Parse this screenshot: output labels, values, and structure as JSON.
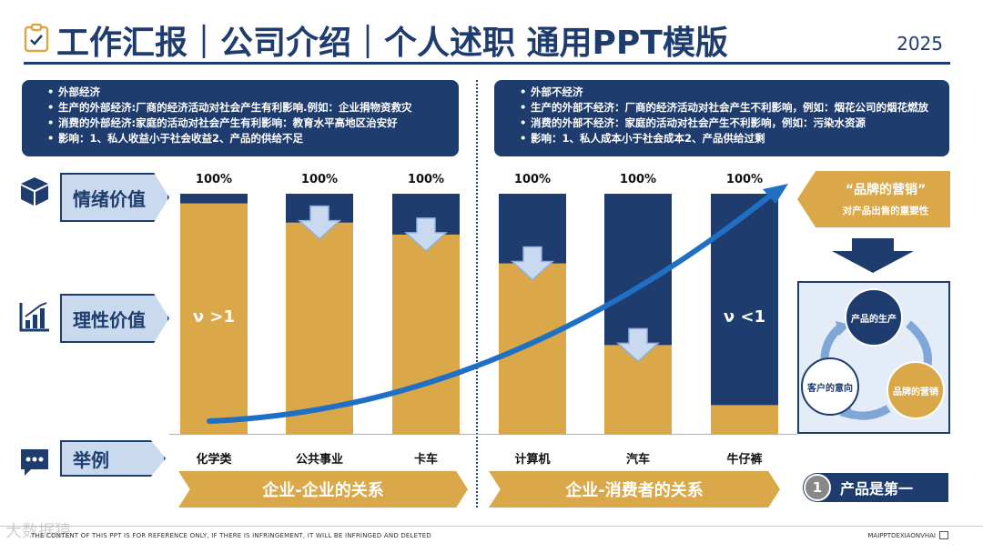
{
  "header": {
    "title": "工作汇报｜公司介绍｜个人述职 通用PPT模版",
    "year": "2025",
    "title_icon": "clipboard-check-icon"
  },
  "info_left": {
    "items": [
      "外部经济",
      "生产的外部经济:厂商的经济活动对社会产生有利影响.例如：企业捐物资救灾",
      "消费的外部经济:家庭的活动对社会产生有利影响：教育水平高地区治安好",
      "影响：1、私人收益小于社会收益2、产品的供给不足"
    ]
  },
  "info_right": {
    "items": [
      "外部不经济",
      "生产的外部不经济：厂商的经济活动对社会产生不利影响，例如：烟花公司的烟花燃放",
      "消费的外部不经济：家庭的活动对社会产生不利影响，例如：污染水资源",
      "影响：1、私人成本小于社会成本2、产品供给过剩"
    ]
  },
  "rows": {
    "emotional": {
      "label": "情绪价值",
      "icon": "box-icon"
    },
    "rational": {
      "label": "理性价值",
      "icon": "bar-chart-icon"
    },
    "example": {
      "label": "举例",
      "icon": "chat-bubble-icon"
    }
  },
  "chart_data": {
    "type": "bar",
    "stacked": true,
    "categories": [
      "化学类",
      "公共事业",
      "卡车",
      "计算机",
      "汽车",
      "牛仔裤"
    ],
    "totals_label": "100%",
    "series": [
      {
        "values": [
          0.96,
          0.88,
          0.83,
          0.71,
          0.37,
          0.12
        ]
      },
      {
        "values": [
          0.04,
          0.12,
          0.17,
          0.29,
          0.63,
          0.88
        ]
      }
    ],
    "ylim": [
      0,
      1
    ],
    "annotations": {
      "left": "ν >1",
      "right": "ν <1"
    },
    "colors": {
      "gold": "#daa848",
      "navy": "#1e3c6e",
      "curve": "#1f6fc4"
    }
  },
  "groups": {
    "left": "企业-企业的关系",
    "right": "企业-消费者的关系"
  },
  "brand": {
    "title": "“品牌的营销”",
    "subtitle": "对产品出售的重要性"
  },
  "cycle": {
    "top": "产品的生产",
    "right": "品牌的营销",
    "left": "客户的意向"
  },
  "badge": {
    "number": "1",
    "label": "产品是第一"
  },
  "footer": {
    "left": "THE CONTENT OF THIS PPT IS FOR REFERENCE ONLY, IF THERE IS INFRINGEMENT, IT WILL BE INFRINGED AND DELETED",
    "right": "MAIPPTDEXIAONVHAI",
    "watermark": "大数据猿"
  }
}
